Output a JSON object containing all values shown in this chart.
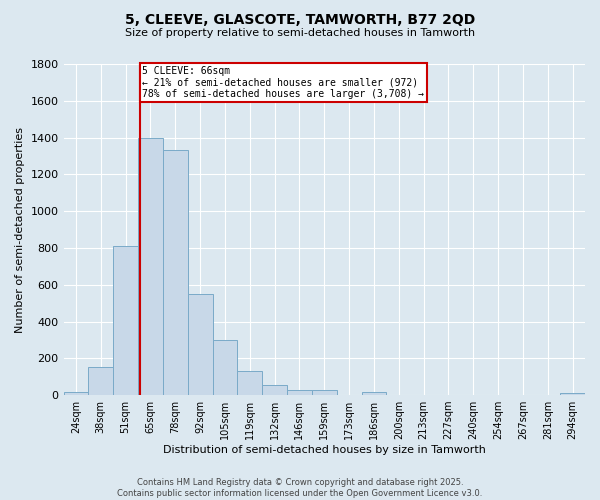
{
  "title": "5, CLEEVE, GLASCOTE, TAMWORTH, B77 2QD",
  "subtitle": "Size of property relative to semi-detached houses in Tamworth",
  "xlabel": "Distribution of semi-detached houses by size in Tamworth",
  "ylabel": "Number of semi-detached properties",
  "categories": [
    "24sqm",
    "38sqm",
    "51sqm",
    "65sqm",
    "78sqm",
    "92sqm",
    "105sqm",
    "119sqm",
    "132sqm",
    "146sqm",
    "159sqm",
    "173sqm",
    "186sqm",
    "200sqm",
    "213sqm",
    "227sqm",
    "240sqm",
    "254sqm",
    "267sqm",
    "281sqm",
    "294sqm"
  ],
  "values": [
    15,
    150,
    810,
    1400,
    1330,
    550,
    300,
    130,
    55,
    25,
    25,
    0,
    15,
    0,
    0,
    0,
    0,
    0,
    0,
    0,
    10
  ],
  "bar_color": "#c8d8e8",
  "bar_edge_color": "#7aaac8",
  "red_line_label": "5 CLEEVE: 66sqm",
  "annotation_smaller": "← 21% of semi-detached houses are smaller (972)",
  "annotation_larger": "78% of semi-detached houses are larger (3,708) →",
  "annotation_box_color": "#ffffff",
  "annotation_box_edge": "#cc0000",
  "ylim": [
    0,
    1800
  ],
  "yticks": [
    0,
    200,
    400,
    600,
    800,
    1000,
    1200,
    1400,
    1600,
    1800
  ],
  "background_color": "#dce8f0",
  "grid_color": "#ffffff",
  "footer_line1": "Contains HM Land Registry data © Crown copyright and database right 2025.",
  "footer_line2": "Contains public sector information licensed under the Open Government Licence v3.0."
}
